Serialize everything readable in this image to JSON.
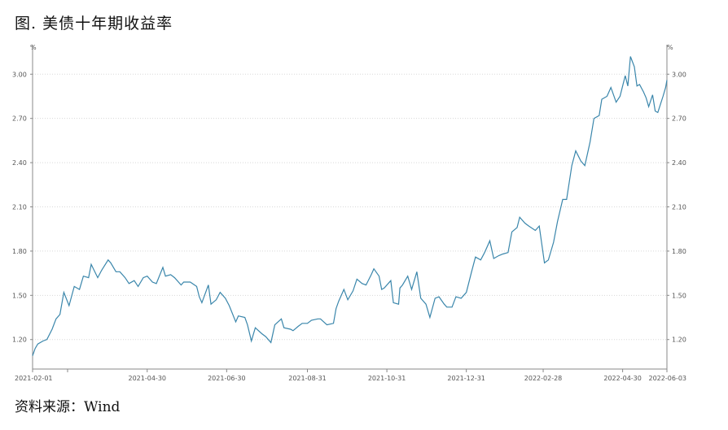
{
  "title": "图. 美债十年期收益率",
  "source": "资料来源：Wind",
  "chart_data": {
    "type": "line",
    "title": "图. 美债十年期收益率",
    "xlabel": "",
    "ylabel": "",
    "y_unit_left": "%",
    "y_unit_right": "%",
    "ylim": [
      1.0,
      3.2
    ],
    "yticks": [
      1.2,
      1.5,
      1.8,
      2.1,
      2.4,
      2.7,
      3.0
    ],
    "ytick_labels": [
      "1.20",
      "1.50",
      "1.80",
      "2.10",
      "2.40",
      "2.70",
      "3.00"
    ],
    "x_range": [
      "2021-02-01",
      "2022-06-03"
    ],
    "xtick_labels": [
      "2021-02-01",
      "2021-04-30",
      "2021-06-30",
      "2021-08-31",
      "2021-10-31",
      "2021-12-31",
      "2022-02-28",
      "2022-04-30",
      "2022-06-03"
    ],
    "grid": "horizontal-dotted",
    "line_color": "#3a86ab",
    "series": [
      {
        "points": [
          [
            "2021-02-01",
            1.09
          ],
          [
            "2021-02-03",
            1.14
          ],
          [
            "2021-02-05",
            1.17
          ],
          [
            "2021-02-09",
            1.19
          ],
          [
            "2021-02-12",
            1.2
          ],
          [
            "2021-02-16",
            1.27
          ],
          [
            "2021-02-19",
            1.34
          ],
          [
            "2021-02-22",
            1.37
          ],
          [
            "2021-02-25",
            1.52
          ],
          [
            "2021-03-01",
            1.43
          ],
          [
            "2021-03-05",
            1.56
          ],
          [
            "2021-03-09",
            1.54
          ],
          [
            "2021-03-12",
            1.63
          ],
          [
            "2021-03-16",
            1.62
          ],
          [
            "2021-03-18",
            1.71
          ],
          [
            "2021-03-23",
            1.62
          ],
          [
            "2021-03-26",
            1.67
          ],
          [
            "2021-03-31",
            1.74
          ],
          [
            "2021-04-02",
            1.72
          ],
          [
            "2021-04-06",
            1.66
          ],
          [
            "2021-04-09",
            1.66
          ],
          [
            "2021-04-13",
            1.62
          ],
          [
            "2021-04-16",
            1.58
          ],
          [
            "2021-04-20",
            1.6
          ],
          [
            "2021-04-23",
            1.56
          ],
          [
            "2021-04-27",
            1.62
          ],
          [
            "2021-04-30",
            1.63
          ],
          [
            "2021-05-04",
            1.59
          ],
          [
            "2021-05-07",
            1.58
          ],
          [
            "2021-05-12",
            1.69
          ],
          [
            "2021-05-14",
            1.63
          ],
          [
            "2021-05-18",
            1.64
          ],
          [
            "2021-05-21",
            1.62
          ],
          [
            "2021-05-26",
            1.57
          ],
          [
            "2021-05-28",
            1.59
          ],
          [
            "2021-06-02",
            1.59
          ],
          [
            "2021-06-07",
            1.56
          ],
          [
            "2021-06-09",
            1.49
          ],
          [
            "2021-06-11",
            1.45
          ],
          [
            "2021-06-16",
            1.57
          ],
          [
            "2021-06-18",
            1.44
          ],
          [
            "2021-06-22",
            1.47
          ],
          [
            "2021-06-25",
            1.52
          ],
          [
            "2021-06-29",
            1.48
          ],
          [
            "2021-07-02",
            1.43
          ],
          [
            "2021-07-07",
            1.32
          ],
          [
            "2021-07-09",
            1.36
          ],
          [
            "2021-07-14",
            1.35
          ],
          [
            "2021-07-16",
            1.3
          ],
          [
            "2021-07-19",
            1.19
          ],
          [
            "2021-07-22",
            1.28
          ],
          [
            "2021-07-27",
            1.24
          ],
          [
            "2021-07-30",
            1.22
          ],
          [
            "2021-08-03",
            1.18
          ],
          [
            "2021-08-06",
            1.3
          ],
          [
            "2021-08-11",
            1.34
          ],
          [
            "2021-08-13",
            1.28
          ],
          [
            "2021-08-18",
            1.27
          ],
          [
            "2021-08-20",
            1.26
          ],
          [
            "2021-08-24",
            1.29
          ],
          [
            "2021-08-27",
            1.31
          ],
          [
            "2021-08-31",
            1.31
          ],
          [
            "2021-09-03",
            1.33
          ],
          [
            "2021-09-08",
            1.34
          ],
          [
            "2021-09-10",
            1.34
          ],
          [
            "2021-09-15",
            1.3
          ],
          [
            "2021-09-20",
            1.31
          ],
          [
            "2021-09-22",
            1.41
          ],
          [
            "2021-09-24",
            1.46
          ],
          [
            "2021-09-28",
            1.54
          ],
          [
            "2021-10-01",
            1.47
          ],
          [
            "2021-10-05",
            1.53
          ],
          [
            "2021-10-08",
            1.61
          ],
          [
            "2021-10-12",
            1.58
          ],
          [
            "2021-10-15",
            1.57
          ],
          [
            "2021-10-19",
            1.64
          ],
          [
            "2021-10-21",
            1.68
          ],
          [
            "2021-10-25",
            1.63
          ],
          [
            "2021-10-27",
            1.54
          ],
          [
            "2021-10-29",
            1.55
          ],
          [
            "2021-11-03",
            1.6
          ],
          [
            "2021-11-05",
            1.45
          ],
          [
            "2021-11-09",
            1.44
          ],
          [
            "2021-11-10",
            1.55
          ],
          [
            "2021-11-12",
            1.57
          ],
          [
            "2021-11-16",
            1.63
          ],
          [
            "2021-11-19",
            1.54
          ],
          [
            "2021-11-23",
            1.66
          ],
          [
            "2021-11-26",
            1.48
          ],
          [
            "2021-11-30",
            1.44
          ],
          [
            "2021-12-03",
            1.35
          ],
          [
            "2021-12-07",
            1.48
          ],
          [
            "2021-12-10",
            1.49
          ],
          [
            "2021-12-14",
            1.44
          ],
          [
            "2021-12-16",
            1.42
          ],
          [
            "2021-12-20",
            1.42
          ],
          [
            "2021-12-23",
            1.49
          ],
          [
            "2021-12-27",
            1.48
          ],
          [
            "2021-12-31",
            1.52
          ],
          [
            "2022-01-04",
            1.66
          ],
          [
            "2022-01-07",
            1.76
          ],
          [
            "2022-01-11",
            1.74
          ],
          [
            "2022-01-14",
            1.79
          ],
          [
            "2022-01-18",
            1.87
          ],
          [
            "2022-01-21",
            1.75
          ],
          [
            "2022-01-25",
            1.77
          ],
          [
            "2022-01-28",
            1.78
          ],
          [
            "2022-02-01",
            1.79
          ],
          [
            "2022-02-04",
            1.93
          ],
          [
            "2022-02-08",
            1.96
          ],
          [
            "2022-02-10",
            2.03
          ],
          [
            "2022-02-14",
            1.99
          ],
          [
            "2022-02-17",
            1.97
          ],
          [
            "2022-02-22",
            1.94
          ],
          [
            "2022-02-25",
            1.97
          ],
          [
            "2022-03-01",
            1.72
          ],
          [
            "2022-03-04",
            1.74
          ],
          [
            "2022-03-08",
            1.86
          ],
          [
            "2022-03-11",
            2.0
          ],
          [
            "2022-03-15",
            2.15
          ],
          [
            "2022-03-18",
            2.15
          ],
          [
            "2022-03-22",
            2.38
          ],
          [
            "2022-03-25",
            2.48
          ],
          [
            "2022-03-29",
            2.41
          ],
          [
            "2022-04-01",
            2.38
          ],
          [
            "2022-04-05",
            2.54
          ],
          [
            "2022-04-08",
            2.7
          ],
          [
            "2022-04-12",
            2.72
          ],
          [
            "2022-04-14",
            2.83
          ],
          [
            "2022-04-18",
            2.85
          ],
          [
            "2022-04-21",
            2.91
          ],
          [
            "2022-04-25",
            2.81
          ],
          [
            "2022-04-28",
            2.85
          ],
          [
            "2022-05-02",
            2.99
          ],
          [
            "2022-05-04",
            2.92
          ],
          [
            "2022-05-06",
            3.12
          ],
          [
            "2022-05-09",
            3.05
          ],
          [
            "2022-05-11",
            2.92
          ],
          [
            "2022-05-13",
            2.93
          ],
          [
            "2022-05-16",
            2.88
          ],
          [
            "2022-05-18",
            2.84
          ],
          [
            "2022-05-20",
            2.78
          ],
          [
            "2022-05-23",
            2.86
          ],
          [
            "2022-05-25",
            2.75
          ],
          [
            "2022-05-27",
            2.74
          ],
          [
            "2022-05-31",
            2.85
          ],
          [
            "2022-06-02",
            2.91
          ],
          [
            "2022-06-03",
            2.96
          ]
        ]
      }
    ]
  }
}
